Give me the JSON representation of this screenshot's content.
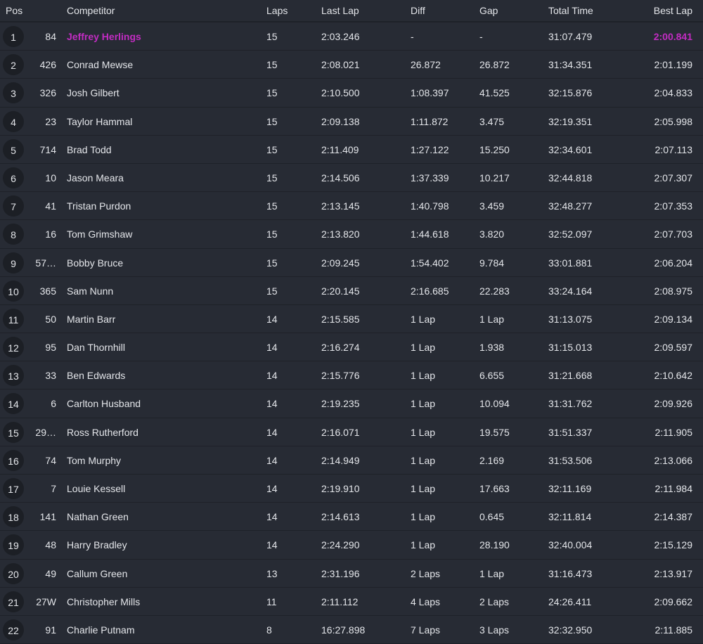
{
  "headers": {
    "pos": "Pos",
    "competitor": "Competitor",
    "laps": "Laps",
    "last_lap": "Last Lap",
    "diff": "Diff",
    "gap": "Gap",
    "total_time": "Total Time",
    "best_lap": "Best Lap"
  },
  "highlight_color": "#c22cc2",
  "rows": [
    {
      "pos": "1",
      "num": "84",
      "name": "Jeffrey Herlings",
      "laps": "15",
      "last": "2:03.246",
      "diff": "-",
      "gap": "-",
      "total": "31:07.479",
      "best": "2:00.841",
      "fastest": true
    },
    {
      "pos": "2",
      "num": "426",
      "name": "Conrad Mewse",
      "laps": "15",
      "last": "2:08.021",
      "diff": "26.872",
      "gap": "26.872",
      "total": "31:34.351",
      "best": "2:01.199"
    },
    {
      "pos": "3",
      "num": "326",
      "name": "Josh Gilbert",
      "laps": "15",
      "last": "2:10.500",
      "diff": "1:08.397",
      "gap": "41.525",
      "total": "32:15.876",
      "best": "2:04.833"
    },
    {
      "pos": "4",
      "num": "23",
      "name": "Taylor Hammal",
      "laps": "15",
      "last": "2:09.138",
      "diff": "1:11.872",
      "gap": "3.475",
      "total": "32:19.351",
      "best": "2:05.998"
    },
    {
      "pos": "5",
      "num": "714",
      "name": "Brad Todd",
      "laps": "15",
      "last": "2:11.409",
      "diff": "1:27.122",
      "gap": "15.250",
      "total": "32:34.601",
      "best": "2:07.113"
    },
    {
      "pos": "6",
      "num": "10",
      "name": "Jason Meara",
      "laps": "15",
      "last": "2:14.506",
      "diff": "1:37.339",
      "gap": "10.217",
      "total": "32:44.818",
      "best": "2:07.307"
    },
    {
      "pos": "7",
      "num": "41",
      "name": "Tristan Purdon",
      "laps": "15",
      "last": "2:13.145",
      "diff": "1:40.798",
      "gap": "3.459",
      "total": "32:48.277",
      "best": "2:07.353"
    },
    {
      "pos": "8",
      "num": "16",
      "name": "Tom Grimshaw",
      "laps": "15",
      "last": "2:13.820",
      "diff": "1:44.618",
      "gap": "3.820",
      "total": "32:52.097",
      "best": "2:07.703"
    },
    {
      "pos": "9",
      "num": "57…",
      "name": "Bobby Bruce",
      "laps": "15",
      "last": "2:09.245",
      "diff": "1:54.402",
      "gap": "9.784",
      "total": "33:01.881",
      "best": "2:06.204"
    },
    {
      "pos": "10",
      "num": "365",
      "name": "Sam Nunn",
      "laps": "15",
      "last": "2:20.145",
      "diff": "2:16.685",
      "gap": "22.283",
      "total": "33:24.164",
      "best": "2:08.975"
    },
    {
      "pos": "11",
      "num": "50",
      "name": "Martin Barr",
      "laps": "14",
      "last": "2:15.585",
      "diff": "1 Lap",
      "gap": "1 Lap",
      "total": "31:13.075",
      "best": "2:09.134"
    },
    {
      "pos": "12",
      "num": "95",
      "name": "Dan Thornhill",
      "laps": "14",
      "last": "2:16.274",
      "diff": "1 Lap",
      "gap": "1.938",
      "total": "31:15.013",
      "best": "2:09.597"
    },
    {
      "pos": "13",
      "num": "33",
      "name": "Ben Edwards",
      "laps": "14",
      "last": "2:15.776",
      "diff": "1 Lap",
      "gap": "6.655",
      "total": "31:21.668",
      "best": "2:10.642"
    },
    {
      "pos": "14",
      "num": "6",
      "name": "Carlton Husband",
      "laps": "14",
      "last": "2:19.235",
      "diff": "1 Lap",
      "gap": "10.094",
      "total": "31:31.762",
      "best": "2:09.926"
    },
    {
      "pos": "15",
      "num": "29…",
      "name": "Ross Rutherford",
      "laps": "14",
      "last": "2:16.071",
      "diff": "1 Lap",
      "gap": "19.575",
      "total": "31:51.337",
      "best": "2:11.905"
    },
    {
      "pos": "16",
      "num": "74",
      "name": "Tom Murphy",
      "laps": "14",
      "last": "2:14.949",
      "diff": "1 Lap",
      "gap": "2.169",
      "total": "31:53.506",
      "best": "2:13.066"
    },
    {
      "pos": "17",
      "num": "7",
      "name": "Louie Kessell",
      "laps": "14",
      "last": "2:19.910",
      "diff": "1 Lap",
      "gap": "17.663",
      "total": "32:11.169",
      "best": "2:11.984"
    },
    {
      "pos": "18",
      "num": "141",
      "name": "Nathan Green",
      "laps": "14",
      "last": "2:14.613",
      "diff": "1 Lap",
      "gap": "0.645",
      "total": "32:11.814",
      "best": "2:14.387"
    },
    {
      "pos": "19",
      "num": "48",
      "name": "Harry Bradley",
      "laps": "14",
      "last": "2:24.290",
      "diff": "1 Lap",
      "gap": "28.190",
      "total": "32:40.004",
      "best": "2:15.129"
    },
    {
      "pos": "20",
      "num": "49",
      "name": "Callum Green",
      "laps": "13",
      "last": "2:31.196",
      "diff": "2 Laps",
      "gap": "1 Lap",
      "total": "31:16.473",
      "best": "2:13.917"
    },
    {
      "pos": "21",
      "num": "27W",
      "name": "Christopher Mills",
      "laps": "11",
      "last": "2:11.112",
      "diff": "4 Laps",
      "gap": "2 Laps",
      "total": "24:26.411",
      "best": "2:09.662"
    },
    {
      "pos": "22",
      "num": "91",
      "name": "Charlie Putnam",
      "laps": "8",
      "last": "16:27.898",
      "diff": "7 Laps",
      "gap": "3 Laps",
      "total": "32:32.950",
      "best": "2:11.885"
    }
  ]
}
